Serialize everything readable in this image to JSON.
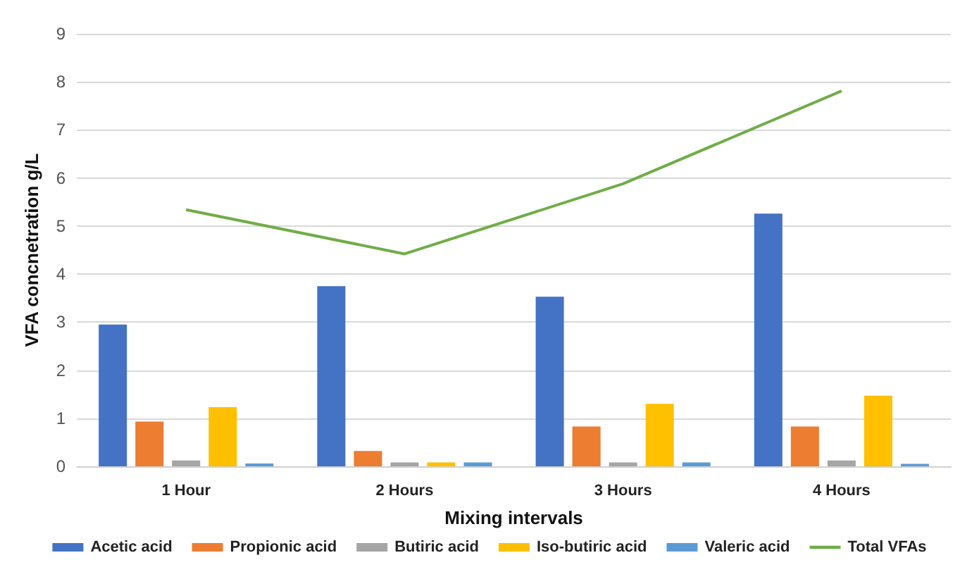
{
  "chart_data": {
    "type": "bar",
    "xlabel": "Mixing intervals",
    "ylabel": "VFA concnetration g/L",
    "categories": [
      "1 Hour",
      "2 Hours",
      "3 Hours",
      "4 Hours"
    ],
    "series": [
      {
        "name": "Acetic acid",
        "color": "#4472c4",
        "values": [
          2.95,
          3.75,
          3.53,
          5.26
        ]
      },
      {
        "name": "Propionic acid",
        "color": "#ed7d31",
        "values": [
          0.93,
          0.32,
          0.83,
          0.83
        ]
      },
      {
        "name": "Butiric acid",
        "color": "#a5a5a5",
        "values": [
          0.12,
          0.08,
          0.08,
          0.12
        ]
      },
      {
        "name": "Iso-butiric acid",
        "color": "#ffc000",
        "values": [
          1.23,
          0.08,
          1.3,
          1.47
        ]
      },
      {
        "name": "Valeric acid",
        "color": "#5b9bd5",
        "values": [
          0.06,
          0.08,
          0.08,
          0.05
        ]
      },
      {
        "name": "Total VFAs",
        "type": "line",
        "color": "#70ad47",
        "values": [
          5.34,
          4.42,
          5.88,
          7.81
        ]
      }
    ],
    "ylim": [
      0,
      9
    ],
    "yticks": [
      0,
      1,
      2,
      3,
      4,
      5,
      6,
      7,
      8,
      9
    ],
    "grid": "y",
    "legend": "bottom",
    "marker": "none"
  }
}
